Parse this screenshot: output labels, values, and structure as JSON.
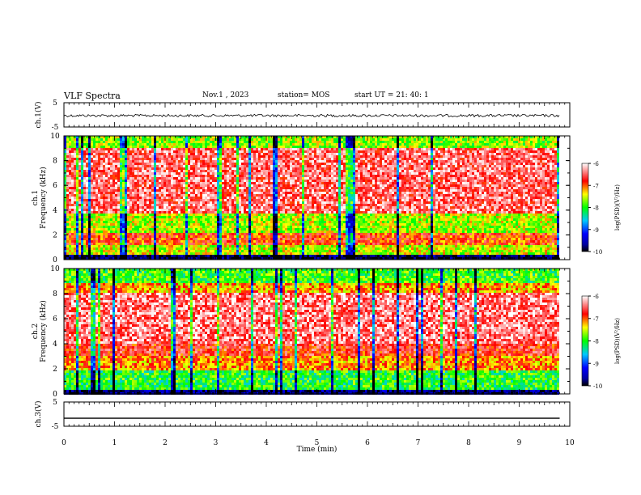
{
  "header": {
    "title": "VLF Spectra",
    "date": "Nov.1  , 2023",
    "station": "station= MOS",
    "start_ut": "start  UT =   21: 40: 1"
  },
  "chart_data": [
    {
      "type": "line",
      "panel": "ch1-waveform",
      "ylabel": "ch.1(V)",
      "ylim": [
        -5,
        5
      ],
      "yticks": [
        "5",
        "-5"
      ],
      "xlim": [
        0,
        10
      ],
      "series": [
        {
          "x": [
            0,
            9.8
          ],
          "values": [
            -0.3,
            -0.3
          ]
        }
      ]
    },
    {
      "type": "heatmap",
      "panel": "ch1-spectrogram",
      "ylabel": "ch.1\nFrequency (kHz)",
      "ylim": [
        0,
        10
      ],
      "yticks": [
        "0",
        "2",
        "4",
        "6",
        "8",
        "10"
      ],
      "xlim": [
        0,
        10
      ],
      "colorbar": {
        "label": "log(PSD)(V²/Hz)",
        "range": [
          -10,
          -6
        ],
        "ticks": [
          "-6",
          "-7",
          "-8",
          "-9",
          "-10"
        ]
      }
    },
    {
      "type": "heatmap",
      "panel": "ch2-spectrogram",
      "ylabel": "ch.2\nFrequency (kHz)",
      "ylim": [
        0,
        10
      ],
      "yticks": [
        "0",
        "2",
        "4",
        "6",
        "8",
        "10"
      ],
      "xlim": [
        0,
        10
      ],
      "colorbar": {
        "label": "log(PSD)(V²/Hz)",
        "range": [
          -10,
          -6
        ],
        "ticks": [
          "-6",
          "-7",
          "-8",
          "-9",
          "-10"
        ]
      }
    },
    {
      "type": "line",
      "panel": "ch3-waveform",
      "ylabel": "ch.3(V)",
      "ylim": [
        -5,
        5
      ],
      "yticks": [
        "5",
        "-5"
      ],
      "xlim": [
        0,
        10
      ],
      "xlabel": "Time  (min)",
      "xticks": [
        "0",
        "1",
        "2",
        "3",
        "4",
        "5",
        "6",
        "7",
        "8",
        "9",
        "10"
      ],
      "series": [
        {
          "x": [
            0,
            9.8
          ],
          "values": [
            -1.7,
            -1.7
          ]
        }
      ]
    }
  ],
  "colors": {
    "scale": [
      "#000080",
      "#0000ff",
      "#00ffff",
      "#00ff00",
      "#ffff00",
      "#ff0000",
      "#ffffff"
    ]
  }
}
